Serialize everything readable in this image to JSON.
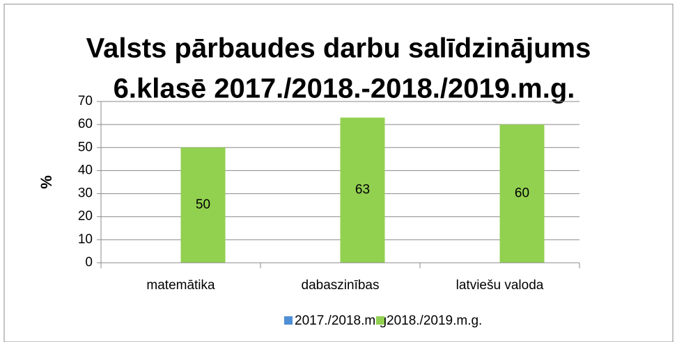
{
  "chart_data": {
    "type": "bar",
    "title": [
      "Valsts pārbaudes darbu salīdzinājums",
      "6.klasē 2017./2018.-2018./2019.m.g."
    ],
    "ylabel": "%",
    "categories": [
      "matemātika",
      "dabaszinības",
      "latviešu valoda"
    ],
    "series": [
      {
        "name": "2017./2018.m.g.",
        "color": "#4f8fd6",
        "values": [
          null,
          null,
          null
        ]
      },
      {
        "name": "2018./2019.m.g.",
        "color": "#92d050",
        "values": [
          50,
          63,
          60
        ]
      }
    ],
    "ylim": [
      0,
      70
    ],
    "yticks": [
      0,
      10,
      20,
      30,
      40,
      50,
      60,
      70
    ],
    "grid": true,
    "legend": "bottom"
  }
}
